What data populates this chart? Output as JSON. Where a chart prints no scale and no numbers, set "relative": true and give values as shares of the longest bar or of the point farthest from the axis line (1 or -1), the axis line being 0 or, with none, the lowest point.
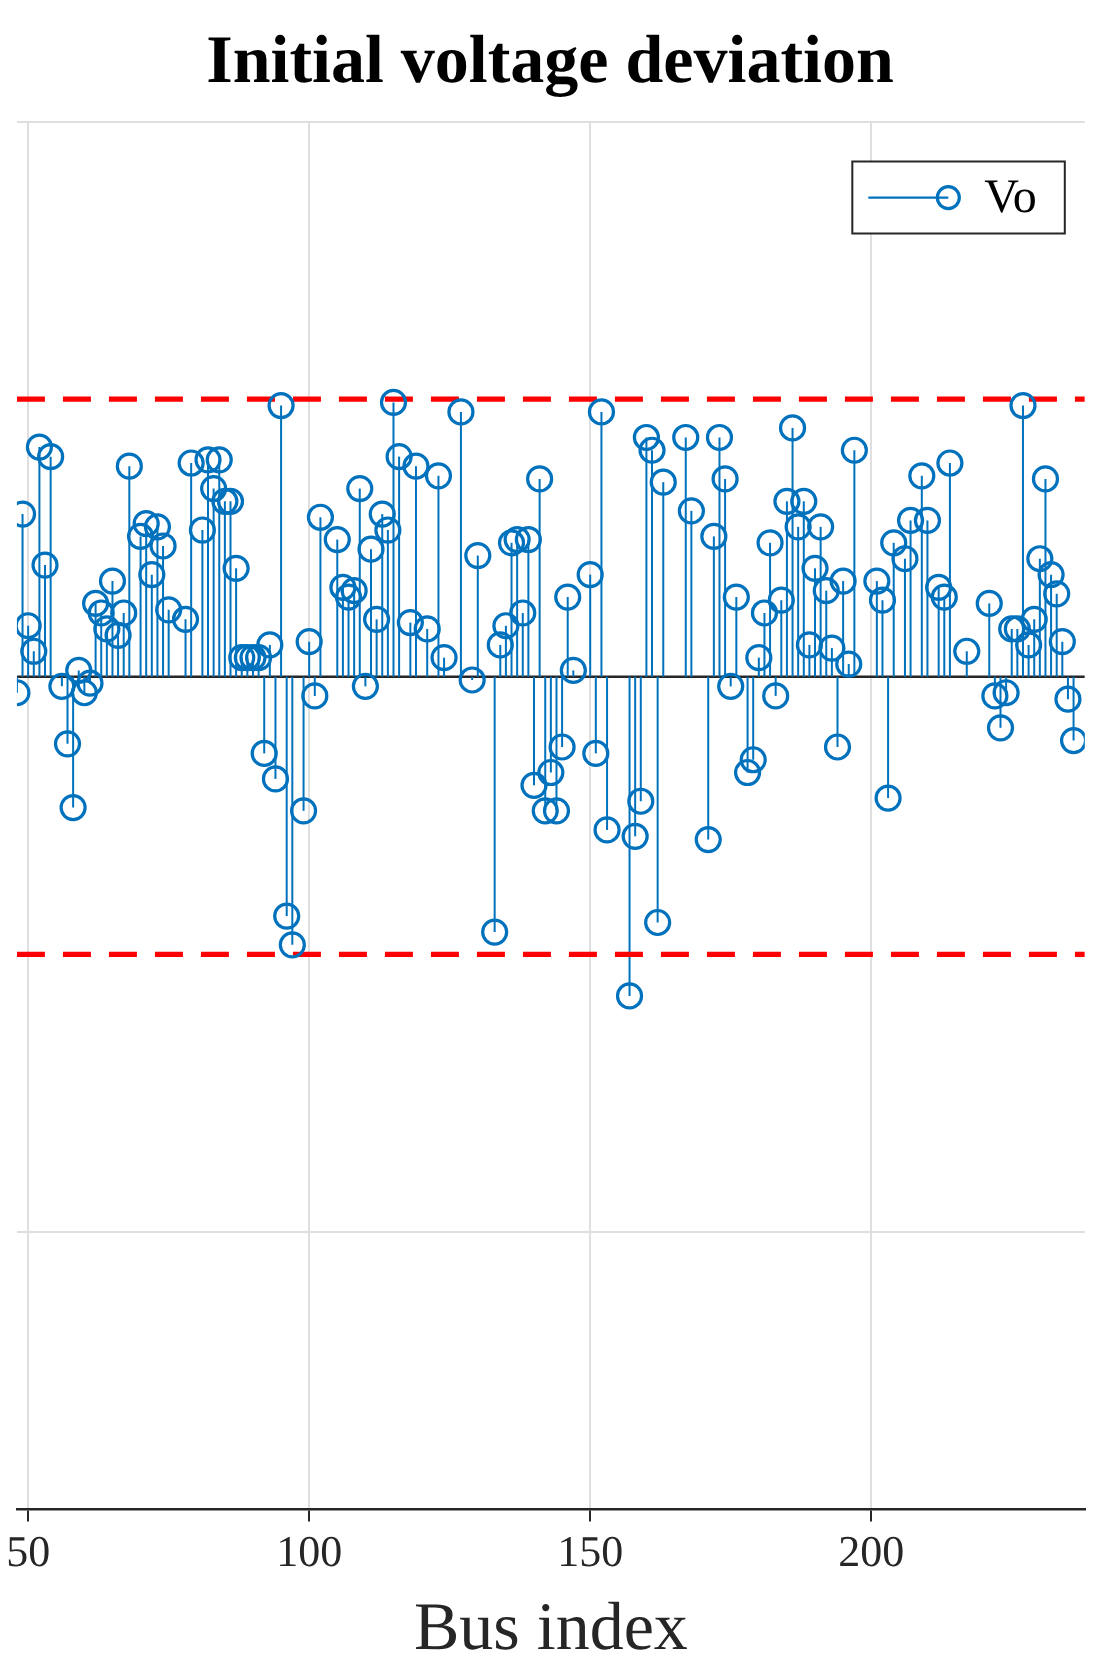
{
  "chart_data": {
    "type": "lollipop",
    "title": "Initial voltage deviation",
    "xlabel": "Bus index",
    "relative": true,
    "xlim": [
      48,
      238
    ],
    "xticks": [
      50,
      100,
      150,
      200
    ],
    "grid": true,
    "legend": "top right",
    "marker": "circle",
    "ref_lines": [
      {
        "axis": "y",
        "value": 0.87,
        "color": "#ff0000",
        "line_style": "dashed"
      },
      {
        "axis": "y",
        "value": -0.87,
        "color": "#ff0000",
        "line_style": "dashed"
      }
    ],
    "series": [
      {
        "name": "Vo",
        "color": "#0072bd",
        "x": [
          48,
          49,
          50,
          51,
          52,
          53,
          54,
          56,
          57,
          58,
          59,
          60,
          61,
          62,
          63,
          64,
          65,
          66,
          67,
          68,
          70,
          71,
          72,
          73,
          74,
          75,
          78,
          79,
          81,
          82,
          83,
          84,
          85,
          86,
          87,
          88,
          89,
          90,
          91,
          92,
          93,
          94,
          95,
          96,
          97,
          99,
          100,
          101,
          102,
          105,
          106,
          107,
          108,
          109,
          110,
          111,
          112,
          113,
          114,
          115,
          116,
          118,
          119,
          121,
          123,
          124,
          127,
          129,
          130,
          133,
          134,
          135,
          136,
          137,
          138,
          139,
          140,
          141,
          142,
          143,
          144,
          145,
          146,
          147,
          150,
          151,
          152,
          153,
          157,
          158,
          159,
          160,
          161,
          162,
          163,
          167,
          168,
          171,
          172,
          173,
          174,
          175,
          176,
          178,
          179,
          180,
          181,
          182,
          183,
          184,
          185,
          186,
          187,
          188,
          189,
          190,
          191,
          192,
          193,
          194,
          195,
          196,
          197,
          201,
          202,
          203,
          204,
          206,
          207,
          209,
          210,
          212,
          213,
          214,
          217,
          221,
          222,
          223,
          224,
          225,
          226,
          227,
          228,
          229,
          230,
          231,
          232,
          233,
          234,
          235,
          236
        ],
        "values": [
          -0.05,
          0.51,
          0.16,
          0.08,
          0.72,
          0.35,
          0.69,
          -0.03,
          -0.21,
          -0.41,
          0.02,
          -0.05,
          -0.02,
          0.23,
          0.2,
          0.15,
          0.3,
          0.13,
          0.2,
          0.66,
          0.44,
          0.48,
          0.32,
          0.47,
          0.41,
          0.21,
          0.18,
          0.67,
          0.46,
          0.68,
          0.59,
          0.68,
          0.55,
          0.55,
          0.34,
          0.06,
          0.06,
          0.06,
          0.06,
          -0.24,
          0.1,
          -0.32,
          0.85,
          -0.75,
          -0.84,
          -0.42,
          0.11,
          -0.06,
          0.5,
          0.43,
          0.28,
          0.25,
          0.27,
          0.59,
          -0.03,
          0.4,
          0.18,
          0.51,
          0.46,
          0.86,
          0.69,
          0.17,
          0.66,
          0.15,
          0.63,
          0.06,
          0.83,
          -0.01,
          0.38,
          -0.8,
          0.1,
          0.16,
          0.42,
          0.43,
          0.2,
          0.43,
          -0.34,
          0.62,
          -0.42,
          -0.3,
          -0.42,
          -0.22,
          0.25,
          0.02,
          0.32,
          -0.24,
          0.83,
          -0.48,
          -1.0,
          -0.5,
          -0.39,
          0.75,
          0.71,
          -0.77,
          0.61,
          0.75,
          0.52,
          -0.51,
          0.44,
          0.75,
          0.62,
          -0.03,
          0.25,
          -0.3,
          -0.26,
          0.06,
          0.2,
          0.42,
          -0.06,
          0.24,
          0.55,
          0.78,
          0.47,
          0.55,
          0.1,
          0.34,
          0.47,
          0.27,
          0.09,
          -0.22,
          0.3,
          0.04,
          0.71,
          0.3,
          0.24,
          -0.38,
          0.42,
          0.37,
          0.49,
          0.63,
          0.49,
          0.28,
          0.25,
          0.67,
          0.08,
          0.23,
          -0.06,
          -0.16,
          -0.05,
          0.15,
          0.15,
          0.85,
          0.1,
          0.18,
          0.37,
          0.62,
          0.32,
          0.26,
          0.11,
          -0.07,
          -0.2
        ]
      }
    ]
  }
}
